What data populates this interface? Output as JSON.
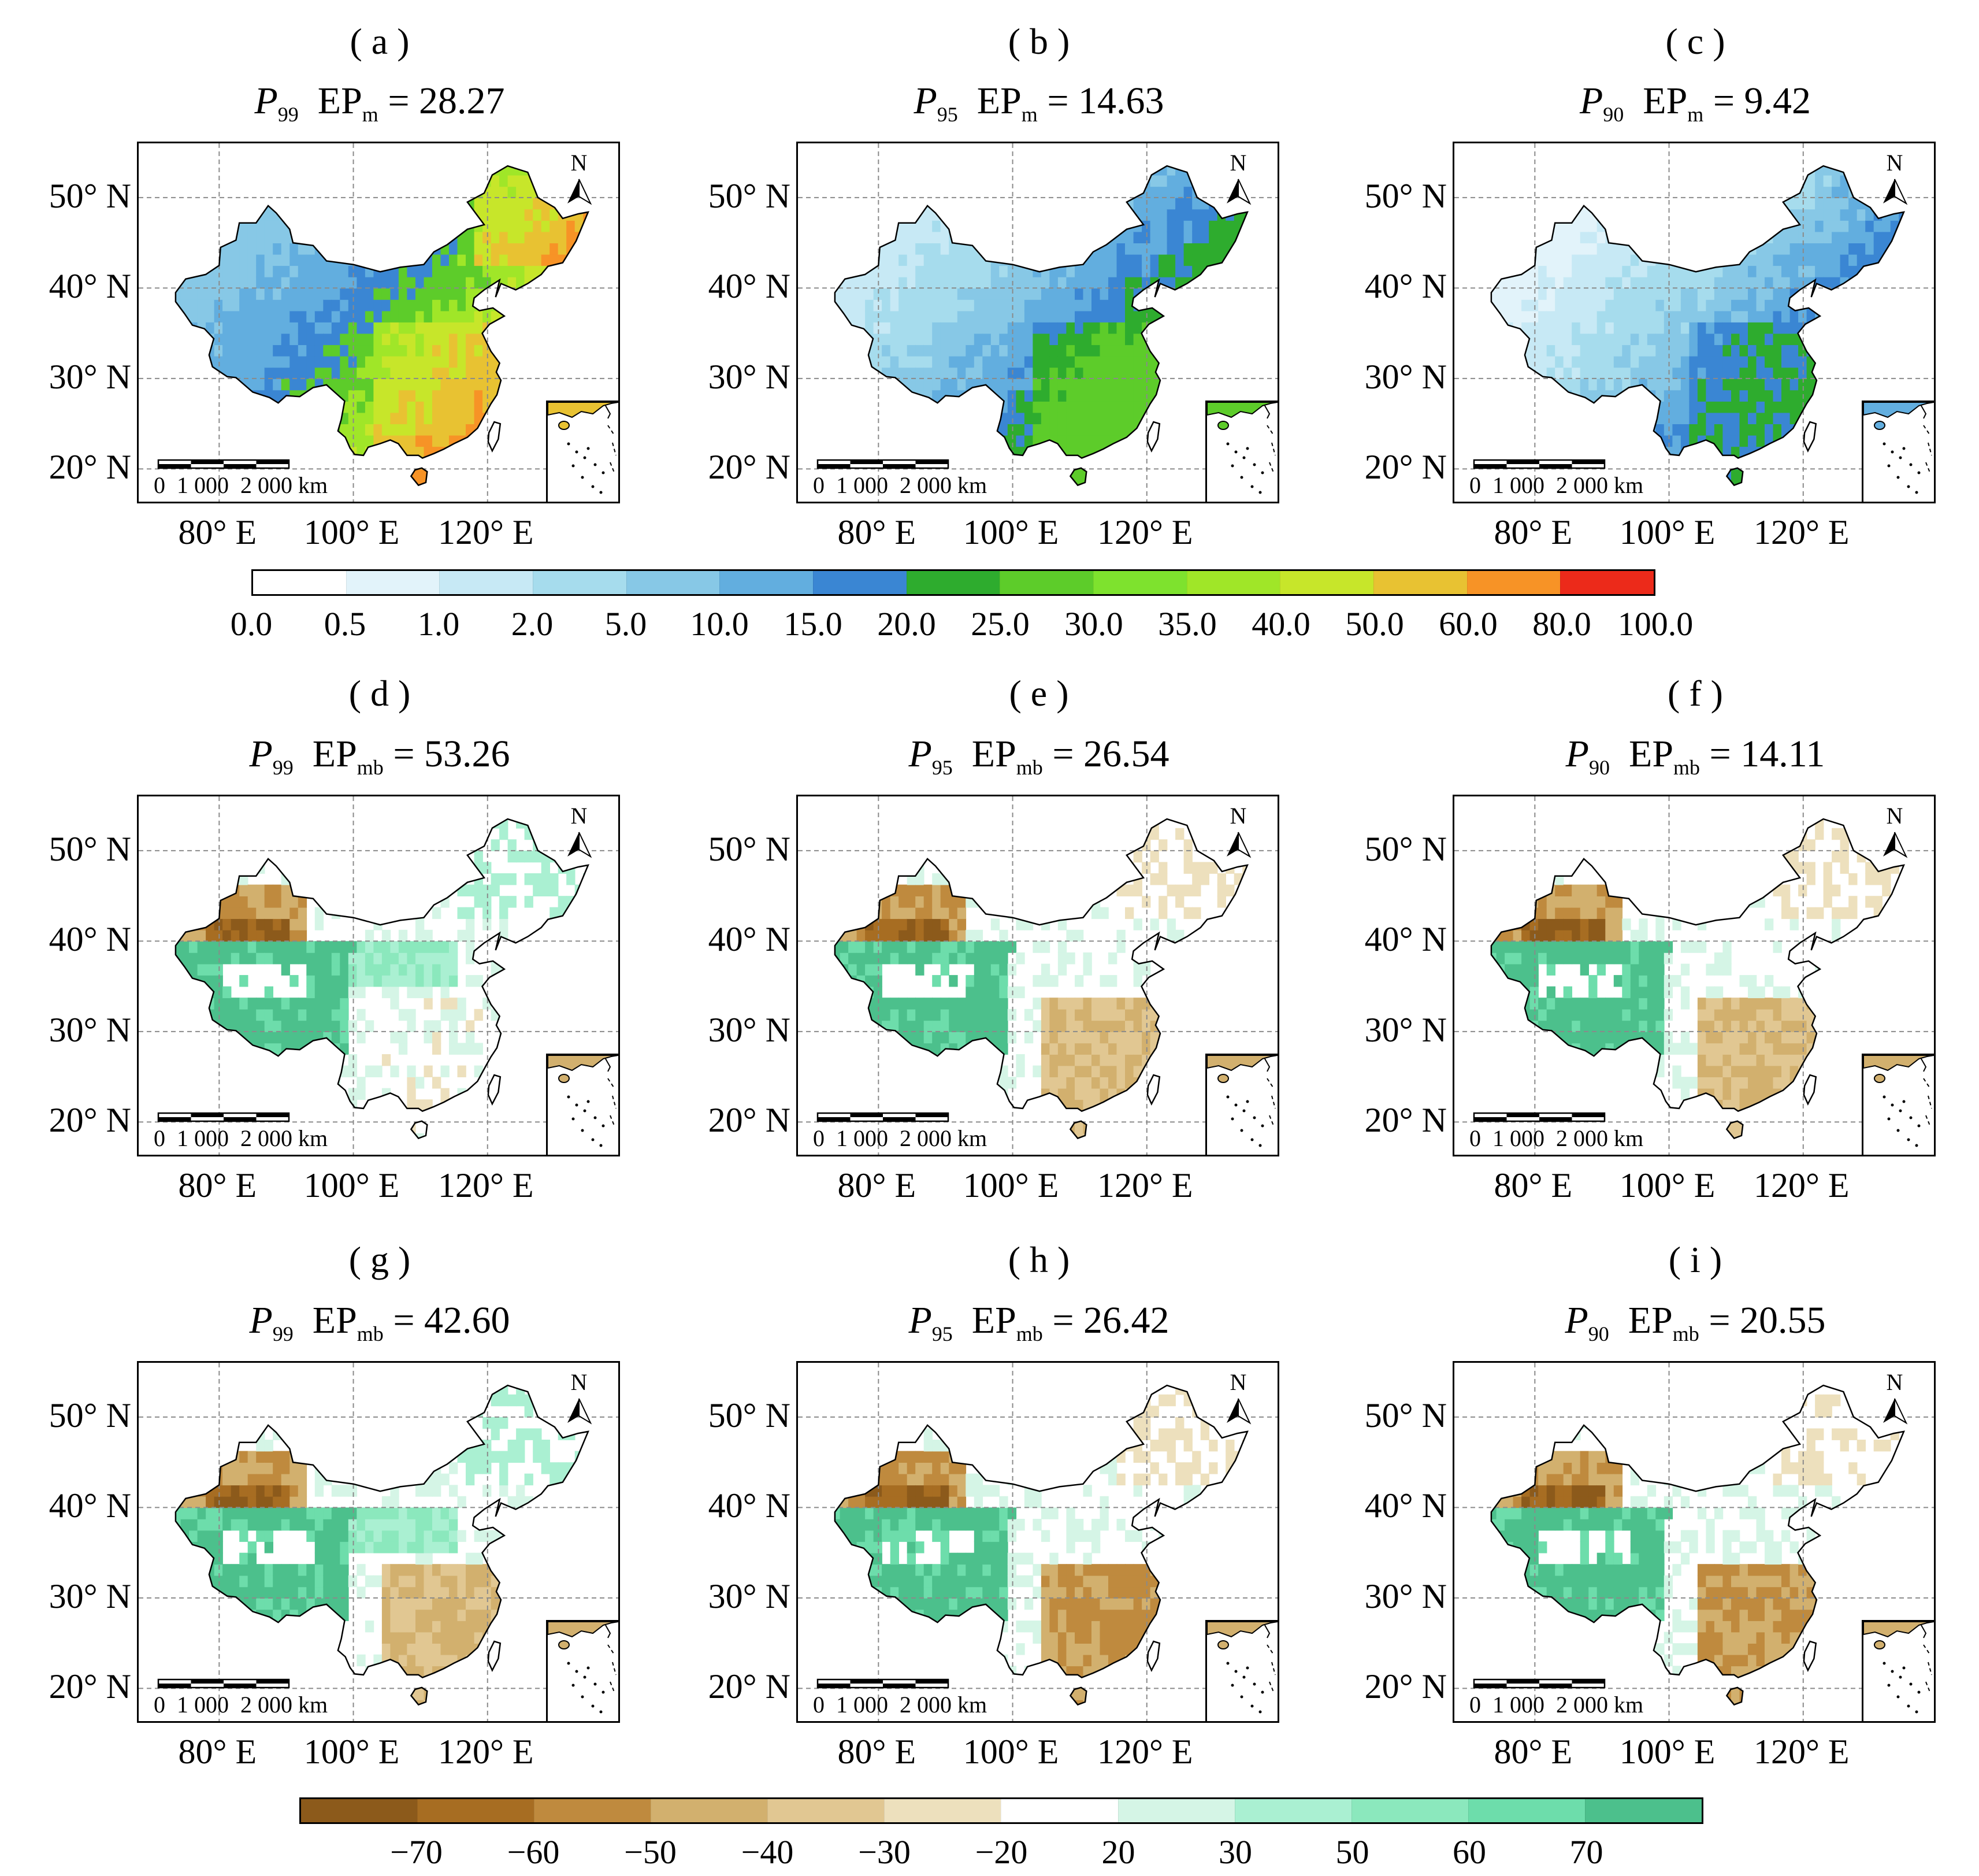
{
  "colorbar_top": {
    "colors": [
      "#ffffff",
      "#e2f3fa",
      "#c7e9f5",
      "#a6dced",
      "#87c8e6",
      "#62aedf",
      "#3a86d3",
      "#2eac2e",
      "#5dcc2a",
      "#7ee22e",
      "#a0e628",
      "#c7e62a",
      "#e8c232",
      "#f79326",
      "#ec2a1a"
    ],
    "ticks": [
      "0.0",
      "0.5",
      "1.0",
      "2.0",
      "5.0",
      "10.0",
      "15.0",
      "20.0",
      "25.0",
      "30.0",
      "35.0",
      "40.0",
      "50.0",
      "60.0",
      "80.0",
      "100.0"
    ]
  },
  "colorbar_bottom": {
    "colors": [
      "#8c5a1b",
      "#a76d22",
      "#bf8a3e",
      "#d2b06e",
      "#e1c792",
      "#ede0bd",
      "#ffffff",
      "#d5f5e6",
      "#aaf0d2",
      "#8be8bd",
      "#6dddab",
      "#4cc08c"
    ],
    "ticks": [
      "−70",
      "−60",
      "−50",
      "−40",
      "−30",
      "−20",
      "20",
      "30",
      "50",
      "60",
      "70"
    ]
  },
  "axes": {
    "lat_labels": [
      "50° N",
      "40° N",
      "30° N",
      "20° N"
    ],
    "lon_labels": [
      "80° E",
      "100° E",
      "120° E"
    ],
    "north": "N",
    "scale_bar": "0  1 000  2 000 km"
  },
  "panels": [
    {
      "label": "( a )",
      "p": "P",
      "p_sub": "99",
      "ep": "EP",
      "ep_sub": "m",
      "value": "= 28.27",
      "kind": "top",
      "scheme": "a"
    },
    {
      "label": "( b )",
      "p": "P",
      "p_sub": "95",
      "ep": "EP",
      "ep_sub": "m",
      "value": "= 14.63",
      "kind": "top",
      "scheme": "b"
    },
    {
      "label": "( c )",
      "p": "P",
      "p_sub": "90",
      "ep": "EP",
      "ep_sub": "m",
      "value": "= 9.42",
      "kind": "top",
      "scheme": "c"
    },
    {
      "label": "( d )",
      "p": "P",
      "p_sub": "99",
      "ep": "EP",
      "ep_sub": "mb",
      "value": "= 53.26",
      "kind": "bias",
      "scheme": "d"
    },
    {
      "label": "( e )",
      "p": "P",
      "p_sub": "95",
      "ep": "EP",
      "ep_sub": "mb",
      "value": "= 26.54",
      "kind": "bias",
      "scheme": "e"
    },
    {
      "label": "( f )",
      "p": "P",
      "p_sub": "90",
      "ep": "EP",
      "ep_sub": "mb",
      "value": "= 14.11",
      "kind": "bias",
      "scheme": "f"
    },
    {
      "label": "( g )",
      "p": "P",
      "p_sub": "99",
      "ep": "EP",
      "ep_sub": "mb",
      "value": "= 42.60",
      "kind": "bias",
      "scheme": "g"
    },
    {
      "label": "( h )",
      "p": "P",
      "p_sub": "95",
      "ep": "EP",
      "ep_sub": "mb",
      "value": "= 26.42",
      "kind": "bias",
      "scheme": "h"
    },
    {
      "label": "( i )",
      "p": "P",
      "p_sub": "90",
      "ep": "EP",
      "ep_sub": "mb",
      "value": "= 20.55",
      "kind": "bias",
      "scheme": "i"
    }
  ]
}
